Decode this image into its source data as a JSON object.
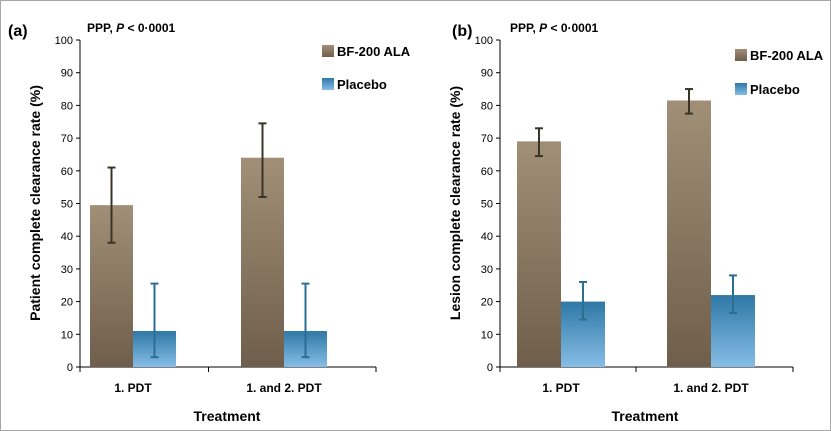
{
  "figure": {
    "colors": {
      "bf200_top": "#a18f77",
      "bf200_bottom": "#6f5e4b",
      "placebo_top": "#2f78a6",
      "placebo_bottom": "#86bde6",
      "err_bf200": "#3a3428",
      "err_placebo": "#2a6e96",
      "frame": "#a6a6a6"
    }
  },
  "chart_data": [
    {
      "type": "bar",
      "panel_label": "(a)",
      "significance": {
        "prefix": "PPP,",
        "p": "P",
        "rest": " < 0·0001"
      },
      "xlabel": "Treatment",
      "ylabel": "Patient complete clearance rate (%)",
      "ylim": [
        0,
        100
      ],
      "yticks": [
        "0",
        "10",
        "20",
        "30",
        "40",
        "50",
        "60",
        "70",
        "80",
        "90",
        "100"
      ],
      "categories": [
        "1. PDT",
        "1. and 2. PDT"
      ],
      "series": [
        {
          "name": "BF-200 ALA",
          "values": [
            49.5,
            64
          ],
          "err_low": [
            38,
            52
          ],
          "err_high": [
            61,
            74.5
          ]
        },
        {
          "name": "Placebo",
          "values": [
            11,
            11
          ],
          "err_low": [
            3,
            3
          ],
          "err_high": [
            25.5,
            25.5
          ]
        }
      ],
      "legend": "top-right",
      "grid": false
    },
    {
      "type": "bar",
      "panel_label": "(b)",
      "significance": {
        "prefix": "PPP,",
        "p": "P",
        "rest": " < 0·0001"
      },
      "xlabel": "Treatment",
      "ylabel": "Lesion complete clearance rate (%)",
      "ylim": [
        0,
        100
      ],
      "yticks": [
        "0",
        "10",
        "20",
        "30",
        "40",
        "50",
        "60",
        "70",
        "80",
        "90",
        "100"
      ],
      "categories": [
        "1. PDT",
        "1. and 2. PDT"
      ],
      "series": [
        {
          "name": "BF-200 ALA",
          "values": [
            69,
            81.5
          ],
          "err_low": [
            64.5,
            77.5
          ],
          "err_high": [
            73,
            85
          ]
        },
        {
          "name": "Placebo",
          "values": [
            20,
            22
          ],
          "err_low": [
            14.5,
            16.5
          ],
          "err_high": [
            26,
            28
          ]
        }
      ],
      "legend": "top-right",
      "grid": false
    }
  ]
}
